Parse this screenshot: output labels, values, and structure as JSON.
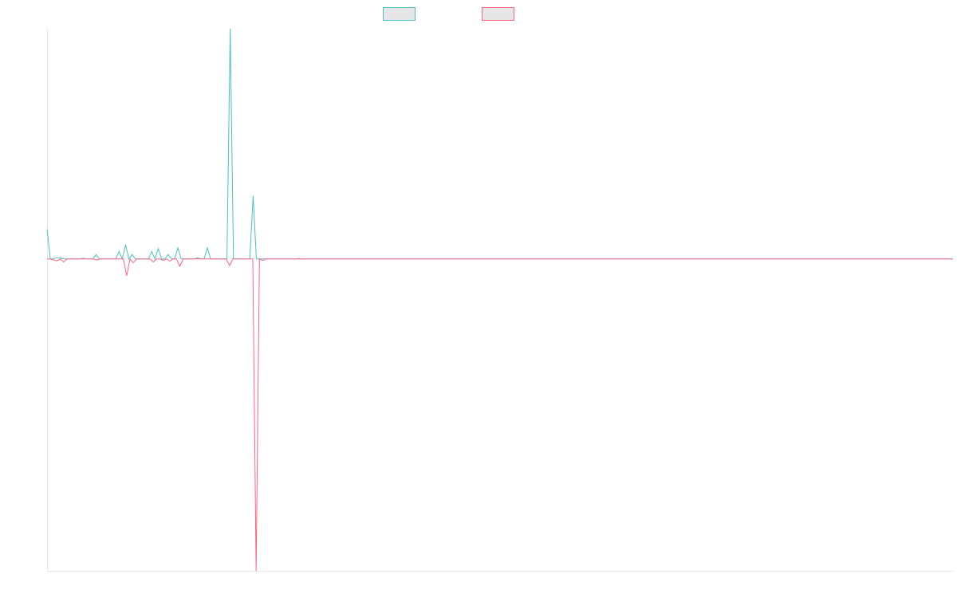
{
  "chart_data": {
    "type": "line",
    "title": "",
    "xlabel": "",
    "ylabel": "",
    "grid": false,
    "legend_placement": "top-center",
    "ylim": [
      -84,
      62
    ],
    "series": [
      {
        "name": "",
        "color": "#4bc0c0",
        "values": [
          8,
          0,
          0,
          0.4,
          0.3,
          0,
          0,
          0,
          0,
          0,
          0,
          0.2,
          0,
          0,
          0,
          1.2,
          0,
          0,
          0,
          0,
          0,
          0,
          2,
          0,
          3.8,
          0,
          1.2,
          0,
          0,
          0,
          0,
          0,
          2,
          0,
          2.8,
          0,
          0,
          1.2,
          0,
          0,
          3,
          0,
          0,
          0,
          0,
          0,
          0.3,
          0,
          0,
          3,
          0,
          0,
          0,
          0,
          0,
          0,
          62,
          0,
          0,
          0,
          0,
          0,
          0,
          17,
          0,
          0,
          0,
          0,
          0,
          0,
          0,
          0,
          0,
          0,
          0,
          0,
          0,
          0.1,
          0,
          0,
          0,
          0,
          0,
          0,
          0,
          0,
          0,
          0,
          0,
          0,
          0,
          0,
          0,
          0,
          0,
          0,
          0,
          0,
          0,
          0,
          0,
          0,
          0,
          0,
          0,
          0,
          0,
          0,
          0,
          0,
          0,
          0,
          0,
          0,
          0,
          0,
          0,
          0,
          0,
          0,
          0,
          0,
          0,
          0,
          0,
          0,
          0,
          0,
          0,
          0,
          0,
          0,
          0,
          0,
          0,
          0,
          0,
          0,
          0,
          0,
          0,
          0,
          0,
          0,
          0,
          0,
          0,
          0,
          0,
          0,
          0,
          0,
          0,
          0,
          0,
          0,
          0,
          0,
          0,
          0,
          0,
          0,
          0,
          0,
          0,
          0,
          0,
          0,
          0,
          0,
          0,
          0,
          0,
          0,
          0,
          0,
          0,
          0,
          0,
          0,
          0,
          0,
          0,
          0,
          0,
          0,
          0,
          0,
          0,
          0,
          0,
          0,
          0,
          0,
          0,
          0,
          0,
          0,
          0,
          0,
          0,
          0,
          0,
          0,
          0,
          0,
          0,
          0,
          0,
          0,
          0,
          0,
          0,
          0,
          0,
          0,
          0,
          0,
          0,
          0,
          0,
          0,
          0,
          0,
          0,
          0,
          0,
          0,
          0,
          0,
          0,
          0,
          0,
          0,
          0,
          0,
          0,
          0,
          0,
          0,
          0,
          0,
          0,
          0,
          0,
          0,
          0,
          0,
          0,
          0,
          0,
          0,
          0,
          0,
          0,
          0,
          0,
          0,
          0,
          0,
          0,
          0,
          0,
          0,
          0,
          0,
          0,
          0,
          0,
          0,
          0,
          0,
          0,
          0,
          0,
          0,
          0,
          0
        ]
      },
      {
        "name": "",
        "color": "#ff6384",
        "values": [
          0,
          0,
          -0.3,
          -0.5,
          0,
          -0.8,
          0,
          0,
          0,
          0,
          0,
          0,
          0,
          0,
          0,
          -0.3,
          0,
          0,
          0,
          0,
          0,
          0,
          0,
          0,
          -4.5,
          0,
          -1,
          0,
          0,
          0,
          0,
          0,
          -0.8,
          0,
          0,
          -0.4,
          0,
          -0.6,
          0,
          0,
          -2,
          0,
          0,
          0,
          0,
          0,
          0,
          0,
          0,
          0,
          0,
          0,
          0,
          0,
          0,
          -1.8,
          0,
          0,
          0,
          0,
          0,
          0,
          0,
          -84,
          0,
          -0.4,
          0,
          0,
          0,
          0,
          0,
          0,
          0,
          0,
          0,
          0,
          0,
          0,
          0,
          0,
          0,
          0,
          0,
          0,
          0,
          0,
          0,
          0,
          0,
          0,
          0,
          0,
          0,
          0,
          0,
          0,
          0,
          0,
          0,
          0,
          0,
          0,
          0,
          0,
          0,
          0,
          0,
          0,
          0,
          0,
          0,
          0,
          0,
          0,
          0,
          0,
          0,
          0,
          0,
          0,
          0,
          0,
          0,
          0,
          0,
          0,
          0,
          0,
          0,
          0,
          0,
          0,
          0,
          0,
          0,
          0,
          0,
          0,
          0,
          0,
          0,
          0,
          0,
          0,
          0,
          0,
          0,
          0,
          0,
          0,
          0,
          0,
          0,
          0,
          0,
          0,
          0,
          0,
          0,
          0,
          0,
          0,
          0,
          0,
          0,
          0,
          0,
          0,
          0,
          0,
          0,
          0,
          0,
          0,
          0,
          0,
          0,
          0,
          0,
          0,
          0,
          0,
          0,
          0,
          0,
          0,
          0,
          0,
          0,
          0,
          0,
          0,
          0,
          0,
          0,
          0,
          0,
          0,
          0,
          0,
          0,
          0,
          0,
          0,
          0,
          0,
          0,
          0,
          0,
          0,
          0,
          0,
          0,
          0,
          0,
          0,
          0,
          0,
          0,
          0,
          0,
          0,
          0,
          0,
          0,
          0,
          0,
          0,
          0,
          0,
          0,
          0,
          0,
          0,
          0,
          0,
          0,
          0,
          0,
          0,
          0,
          0,
          0,
          0,
          0,
          0,
          0,
          0,
          0,
          0,
          0,
          0,
          0,
          0,
          0,
          0,
          0,
          0,
          0,
          0,
          0,
          0,
          0,
          0,
          0,
          0,
          0,
          0,
          0,
          0,
          0,
          0,
          0,
          0
        ]
      }
    ]
  }
}
